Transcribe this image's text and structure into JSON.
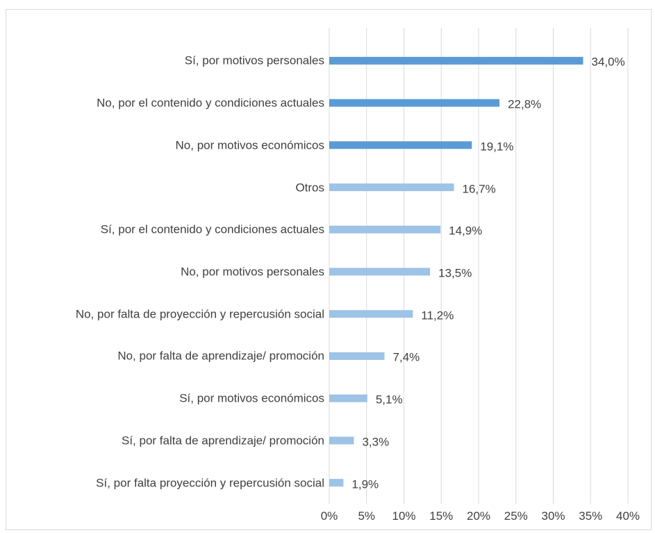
{
  "chart_data": {
    "type": "barh",
    "categories": [
      "Sí, por motivos personales",
      "No, por el contenido y condiciones actuales",
      "No, por motivos económicos",
      "Otros",
      "Sí, por el contenido y condiciones actuales",
      "No, por motivos personales",
      "No, por falta de proyección y repercusión social",
      "No, por falta de aprendizaje/ promoción",
      "Sí, por motivos económicos",
      "Sí, por falta de aprendizaje/ promoción",
      "Sí, por falta proyección y repercusión social"
    ],
    "values": [
      34.0,
      22.8,
      19.1,
      16.7,
      14.9,
      13.5,
      11.2,
      7.4,
      5.1,
      3.3,
      1.9
    ],
    "value_labels": [
      "34,0%",
      "22,8%",
      "19,1%",
      "16,7%",
      "14,9%",
      "13,5%",
      "11,2%",
      "7,4%",
      "5,1%",
      "3,3%",
      "1,9%"
    ],
    "colors": [
      "#5b9bd5",
      "#5b9bd5",
      "#5b9bd5",
      "#9dc3e6",
      "#9dc3e6",
      "#9dc3e6",
      "#9dc3e6",
      "#9dc3e6",
      "#9dc3e6",
      "#9dc3e6",
      "#9dc3e6"
    ],
    "xlim": [
      0,
      40
    ],
    "xticks": [
      {
        "value": 0,
        "label": "0%"
      },
      {
        "value": 5,
        "label": "5%"
      },
      {
        "value": 10,
        "label": "10%"
      },
      {
        "value": 15,
        "label": "15%"
      },
      {
        "value": 20,
        "label": "20%"
      },
      {
        "value": 25,
        "label": "25%"
      },
      {
        "value": 30,
        "label": "30%"
      },
      {
        "value": 35,
        "label": "35%"
      },
      {
        "value": 40,
        "label": "40%"
      }
    ],
    "grid": true
  }
}
